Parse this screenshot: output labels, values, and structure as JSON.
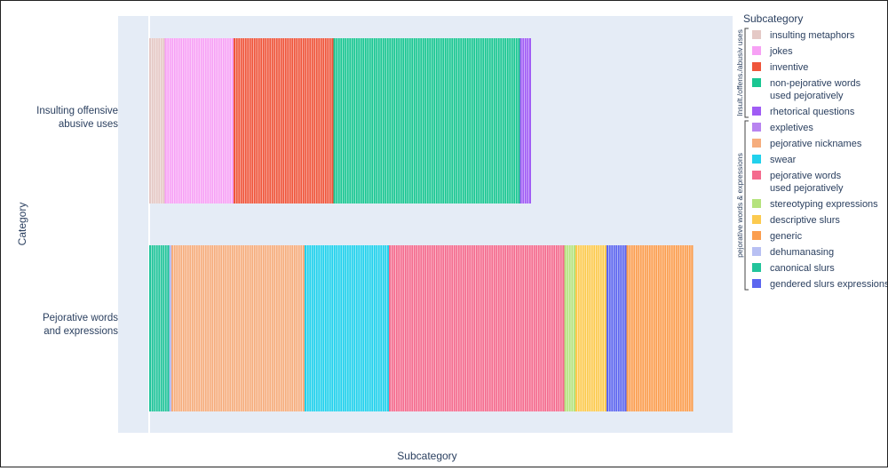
{
  "chart_data": {
    "type": "bar",
    "orientation": "horizontal",
    "barmode": "stack",
    "xlabel": "Subcategory",
    "ylabel": "Category",
    "categories": [
      {
        "label_lines": [
          "Insulting offensive",
          "abusive uses"
        ],
        "group": "Insult./offens./abusiv uses"
      },
      {
        "label_lines": [
          "Pejorative words",
          "and expressions"
        ],
        "group": "pejorative words & expressions"
      }
    ],
    "legend": {
      "title": "Subcategory",
      "position": "right",
      "groups": [
        {
          "name": "Insult./offens./abusiv uses",
          "items": [
            0,
            1,
            2,
            3,
            4
          ]
        },
        {
          "name": "pejorative words & expressions",
          "items": [
            5,
            6,
            7,
            8,
            9,
            10,
            11,
            12,
            13,
            14
          ]
        }
      ]
    },
    "series": [
      {
        "lines": [
          "insulting metaphors"
        ],
        "color": "#e5c9c6",
        "values": [
          7,
          0
        ]
      },
      {
        "lines": [
          "jokes"
        ],
        "color": "#f7a1f5",
        "values": [
          31,
          0
        ]
      },
      {
        "lines": [
          "inventive"
        ],
        "color": "#ef553b",
        "values": [
          45,
          0
        ]
      },
      {
        "lines": [
          "non-pejorative words",
          "used pejoratively"
        ],
        "color": "#19c692",
        "values": [
          84,
          0
        ]
      },
      {
        "lines": [
          "rhetorical questions"
        ],
        "color": "#a05cf5",
        "values": [
          5,
          0
        ]
      },
      {
        "lines": [
          "expletives"
        ],
        "color": "#b884f0",
        "values": [
          0,
          0
        ]
      },
      {
        "lines": [
          "pejorative nicknames"
        ],
        "color": "#f6ad7d",
        "values": [
          0,
          60
        ]
      },
      {
        "lines": [
          "swear"
        ],
        "color": "#21d1ec",
        "values": [
          0,
          38
        ]
      },
      {
        "lines": [
          "pejorative words",
          "used pejoratively"
        ],
        "color": "#f46b8e",
        "values": [
          0,
          79
        ]
      },
      {
        "lines": [
          "stereotyping expressions"
        ],
        "color": "#b5e37d",
        "values": [
          0,
          5
        ]
      },
      {
        "lines": [
          "descriptive slurs"
        ],
        "color": "#fcca4f",
        "values": [
          0,
          14
        ]
      },
      {
        "lines": [
          "generic"
        ],
        "color": "#fb9e4f",
        "values": [
          0,
          30
        ]
      },
      {
        "lines": [
          "dehumanasing"
        ],
        "color": "#b8c0f3",
        "values": [
          0,
          1
        ]
      },
      {
        "lines": [
          "canonical slurs"
        ],
        "color": "#22c49b",
        "values": [
          0,
          9
        ]
      },
      {
        "lines": [
          "gendered slurs expressions"
        ],
        "color": "#5c66ef",
        "values": [
          0,
          9
        ]
      }
    ],
    "stack_order": {
      "Insulting offensive abusive uses": [
        0,
        1,
        2,
        3,
        4
      ],
      "Pejorative words and expressions": [
        13,
        12,
        6,
        7,
        8,
        9,
        10,
        14,
        11
      ]
    },
    "grid": true,
    "plot_background": "#e5ecf6"
  }
}
